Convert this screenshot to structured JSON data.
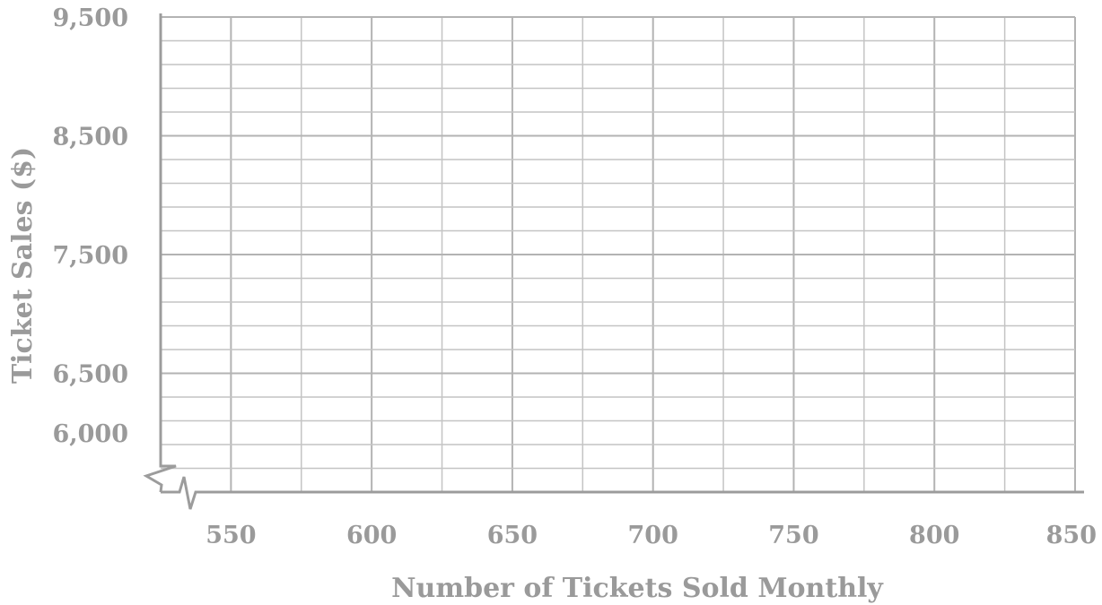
{
  "chart_data": {
    "type": "scatter",
    "title": "",
    "xlabel": "Number of Tickets Sold Monthly",
    "ylabel": "Ticket Sales ($)",
    "xlim": [
      525,
      850
    ],
    "ylim": [
      5500,
      9500
    ],
    "x_ticks": [
      550,
      600,
      650,
      700,
      750,
      800,
      850
    ],
    "x_tick_labels": [
      "550",
      "600",
      "650",
      "700",
      "750",
      "800",
      "850"
    ],
    "y_ticks": [
      6000,
      6500,
      7500,
      8500,
      9500
    ],
    "y_tick_labels": [
      "6,000",
      "6,500",
      "7,500",
      "8,500",
      "9,500"
    ],
    "x_grid_step": 25,
    "y_grid_step": 200,
    "axis_breaks": [
      "x",
      "y"
    ],
    "grid": true,
    "series": [],
    "colors": {
      "grid": "#c4c4c4",
      "axis": "#9c9c9c",
      "text": "#9a9a9a"
    }
  }
}
